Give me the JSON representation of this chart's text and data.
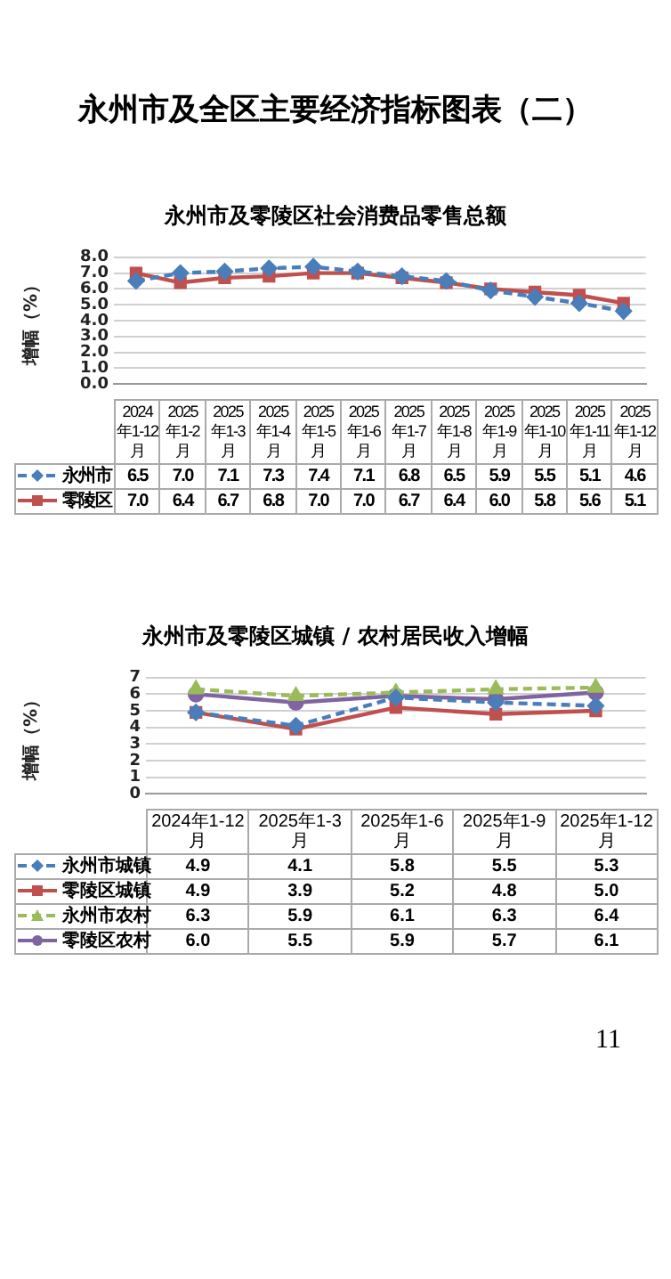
{
  "chart_data": [
    {
      "type": "line",
      "title": "永州市及零陵区社会消费品零售总额",
      "ylabel": "增幅（%）",
      "annotations": [
        "永州市及全区主要经济指标图表（二）"
      ],
      "categories": [
        "2024年1-12月",
        "2025年1-2月",
        "2025年1-3月",
        "2025年1-4月",
        "2025年1-5月",
        "2025年1-6月",
        "2025年1-7月",
        "2025年1-8月",
        "2025年1-9月",
        "2025年1-10月",
        "2025年1-11月",
        "2025年1-12月"
      ],
      "series": [
        {
          "name": "永州市",
          "color": "#4a7ebb",
          "marker": "diamond",
          "line_style": "dashed",
          "values": [
            6.5,
            7.0,
            7.1,
            7.3,
            7.4,
            7.1,
            6.8,
            6.5,
            5.9,
            5.5,
            5.1,
            4.6
          ],
          "value_labels": [
            "6.5",
            "7.0",
            "7.1",
            "7.3",
            "7.4",
            "7.1",
            "6.8",
            "6.5",
            "5.9",
            "5.5",
            "5.1",
            "4.6"
          ]
        },
        {
          "name": "零陵区",
          "color": "#c0504d",
          "marker": "square",
          "line_style": "solid",
          "values": [
            7.0,
            6.4,
            6.7,
            6.8,
            7.0,
            7.0,
            6.7,
            6.4,
            6.0,
            5.8,
            5.6,
            5.1
          ],
          "value_labels": [
            "7.0",
            "6.4",
            "6.7",
            "6.8",
            "7.0",
            "7.0",
            "6.7",
            "6.4",
            "6.0",
            "5.8",
            "5.6",
            "5.1"
          ]
        }
      ],
      "ylim": [
        0,
        8
      ],
      "yticks": [
        {
          "value": 0,
          "label": "0.0"
        },
        {
          "value": 1,
          "label": "1.0"
        },
        {
          "value": 2,
          "label": "2.0"
        },
        {
          "value": 3,
          "label": "3.0"
        },
        {
          "value": 4,
          "label": "4.0"
        },
        {
          "value": 5,
          "label": "5.0"
        },
        {
          "value": 6,
          "label": "6.0"
        },
        {
          "value": 7,
          "label": "7.0"
        },
        {
          "value": 8,
          "label": "8.0"
        }
      ],
      "grid": "y",
      "legend": "bottom left"
    },
    {
      "type": "line",
      "title": "永州市及零陵区城镇 / 农村居民收入增幅",
      "ylabel": "增幅（%）",
      "annotations": [
        "11"
      ],
      "categories": [
        "2024年1-12月",
        "2025年1-3月",
        "2025年1-6月",
        "2025年1-9月",
        "2025年1-12月"
      ],
      "series": [
        {
          "name": "永州市城镇",
          "color": "#4a7ebb",
          "marker": "diamond",
          "line_style": "dashed",
          "values": [
            4.9,
            4.1,
            5.8,
            5.5,
            5.3
          ],
          "value_labels": [
            "4.9",
            "4.1",
            "5.8",
            "5.5",
            "5.3"
          ]
        },
        {
          "name": "零陵区城镇",
          "color": "#c0504d",
          "marker": "square",
          "line_style": "solid",
          "values": [
            4.9,
            3.9,
            5.2,
            4.8,
            5.0
          ],
          "value_labels": [
            "4.9",
            "3.9",
            "5.2",
            "4.8",
            "5.0"
          ]
        },
        {
          "name": "永州市农村",
          "color": "#9bbb59",
          "marker": "triangle",
          "line_style": "dashed",
          "values": [
            6.3,
            5.9,
            6.1,
            6.3,
            6.4
          ],
          "value_labels": [
            "6.3",
            "5.9",
            "6.1",
            "6.3",
            "6.4"
          ]
        },
        {
          "name": "零陵区农村",
          "color": "#8064a2",
          "marker": "circle",
          "line_style": "solid",
          "values": [
            6.0,
            5.5,
            5.9,
            5.7,
            6.1
          ],
          "value_labels": [
            "6.0",
            "5.5",
            "5.9",
            "5.7",
            "6.1"
          ]
        }
      ],
      "ylim": [
        0,
        7
      ],
      "yticks": [
        0,
        1,
        2,
        3,
        4,
        5,
        6,
        7
      ],
      "grid": "y",
      "legend": "bottom left"
    }
  ]
}
